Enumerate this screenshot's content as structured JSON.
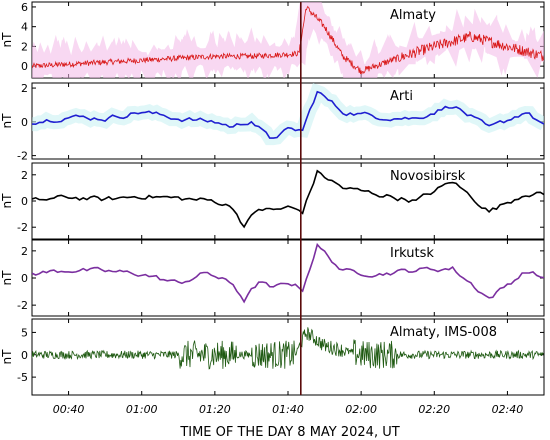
{
  "chart_data": [
    {
      "type": "line",
      "title": "Almaty",
      "ylabel": "nT",
      "ylim": [
        -1.2,
        6.5
      ],
      "yticks": [
        0,
        2,
        4,
        6
      ],
      "series": [
        {
          "color": "#d91a1a",
          "shadow": "#f2b8e8",
          "noise": "high",
          "x": [
            0,
            10,
            20,
            30,
            40,
            50,
            60,
            70,
            73,
            75,
            80,
            85,
            90,
            100,
            110,
            120,
            130,
            140
          ],
          "values": [
            0.0,
            0.2,
            0.4,
            0.6,
            0.8,
            1.0,
            1.0,
            1.2,
            1.3,
            6.0,
            4.0,
            1.0,
            -0.5,
            0.8,
            2.0,
            3.0,
            2.0,
            1.0
          ]
        }
      ]
    },
    {
      "type": "line",
      "title": "Arti",
      "ylabel": "nT",
      "ylim": [
        -2.2,
        2.3
      ],
      "yticks": [
        -2,
        0,
        2
      ],
      "series": [
        {
          "color": "#1f1fd1",
          "shadow": "#c7f0f2",
          "noise": "low",
          "x": [
            0,
            10,
            20,
            30,
            40,
            50,
            55,
            60,
            65,
            70,
            74,
            78,
            85,
            95,
            105,
            115,
            125,
            135,
            140
          ],
          "values": [
            0.0,
            0.3,
            0.2,
            0.6,
            0.2,
            0.0,
            -0.3,
            0.1,
            -1.0,
            -0.5,
            -0.5,
            1.8,
            0.6,
            0.3,
            0.2,
            1.0,
            -0.4,
            0.6,
            -0.2
          ]
        }
      ]
    },
    {
      "type": "line",
      "title": "Novosibirsk",
      "ylabel": "nT",
      "ylim": [
        -2.9,
        2.9
      ],
      "yticks": [
        -2,
        0,
        2
      ],
      "series": [
        {
          "color": "#000000",
          "noise": "low",
          "x": [
            0,
            10,
            20,
            30,
            40,
            50,
            55,
            58,
            62,
            66,
            70,
            74,
            78,
            85,
            95,
            105,
            115,
            125,
            135,
            140
          ],
          "values": [
            0.0,
            0.3,
            0.1,
            0.4,
            0.2,
            0.0,
            -0.5,
            -1.9,
            -0.6,
            -0.7,
            -0.5,
            -0.8,
            2.2,
            1.0,
            0.5,
            0.0,
            1.5,
            -0.8,
            0.6,
            0.5
          ]
        }
      ]
    },
    {
      "type": "line",
      "title": "Irkutsk",
      "ylabel": "nT",
      "ylim": [
        -2.8,
        2.8
      ],
      "yticks": [
        -2,
        0,
        2
      ],
      "series": [
        {
          "color": "#7b2fa0",
          "noise": "low",
          "x": [
            0,
            10,
            20,
            30,
            40,
            48,
            55,
            58,
            62,
            66,
            70,
            74,
            78,
            85,
            95,
            105,
            115,
            125,
            135,
            140
          ],
          "values": [
            0.3,
            0.6,
            0.5,
            0.3,
            -0.4,
            0.4,
            -0.5,
            -1.6,
            -0.3,
            -0.8,
            -0.3,
            -0.8,
            2.4,
            0.5,
            0.3,
            0.6,
            0.7,
            -1.5,
            0.5,
            0.0
          ]
        }
      ]
    },
    {
      "type": "line",
      "title": "Almaty, IMS-008",
      "ylabel": "nT",
      "xlabel": "TIME OF THE DAY 8 MAY 2024, UT",
      "ylim": [
        -9,
        8
      ],
      "yticks": [
        -5,
        0,
        5
      ],
      "series": [
        {
          "color": "#1f5a12",
          "noise": "bursty",
          "x": [
            0,
            20,
            40,
            50,
            60,
            72,
            75,
            80,
            90,
            100,
            110,
            120,
            130,
            140
          ],
          "values": [
            0,
            0,
            0,
            0,
            0,
            0,
            5,
            2,
            0,
            0,
            0,
            0,
            0,
            0
          ]
        }
      ]
    }
  ],
  "shared_x": {
    "range": [
      0,
      140
    ],
    "tick_values": [
      10,
      30,
      50,
      70,
      90,
      110,
      130
    ],
    "tick_labels": [
      "00:40",
      "01:00",
      "01:20",
      "01:40",
      "02:00",
      "02:20",
      "02:40"
    ],
    "event_line_x": 73.5,
    "event_line_color": "#5a0a0a"
  }
}
